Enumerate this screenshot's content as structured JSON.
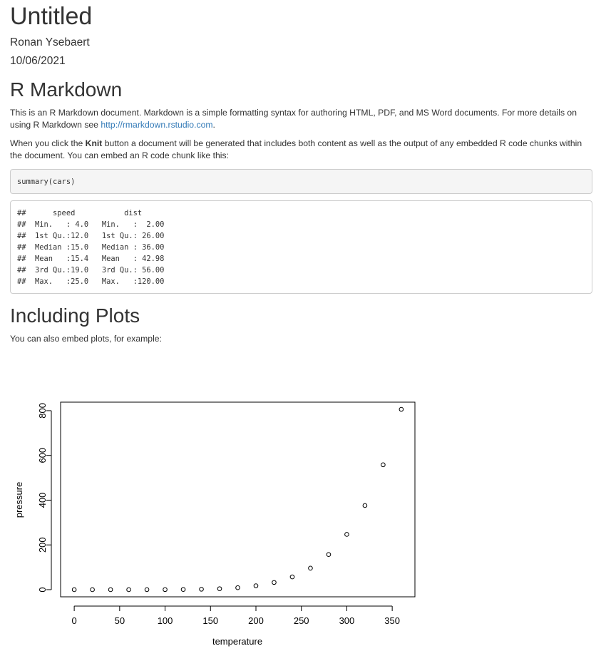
{
  "doc": {
    "title": "Untitled",
    "author": "Ronan Ysebaert",
    "date": "10/06/2021"
  },
  "section1": {
    "heading": "R Markdown",
    "p1_text": "This is an R Markdown document. Markdown is a simple formatting syntax for authoring HTML, PDF, and MS Word documents. For more details on using R Markdown see ",
    "p1_link": "http://rmarkdown.rstudio.com",
    "p1_end": ".",
    "p2_start": "When you click the ",
    "p2_bold": "Knit",
    "p2_end": " button a document will be generated that includes both content as well as the output of any embedded R code chunks within the document. You can embed an R code chunk like this:",
    "code": "summary(cars)",
    "output": "##      speed           dist       \n##  Min.   : 4.0   Min.   :  2.00  \n##  1st Qu.:12.0   1st Qu.: 26.00  \n##  Median :15.0   Median : 36.00  \n##  Mean   :15.4   Mean   : 42.98  \n##  3rd Qu.:19.0   3rd Qu.: 56.00  \n##  Max.   :25.0   Max.   :120.00  "
  },
  "section2": {
    "heading": "Including Plots",
    "p_text": "You can also embed plots, for example:"
  },
  "chart_data": {
    "type": "scatter",
    "title": "",
    "xlabel": "temperature",
    "ylabel": "pressure",
    "xlim": [
      -15,
      375
    ],
    "ylim": [
      -32,
      838
    ],
    "xticks": [
      0,
      50,
      100,
      150,
      200,
      250,
      300,
      350
    ],
    "yticks": [
      0,
      200,
      400,
      600,
      800
    ],
    "grid": false,
    "x": [
      0,
      20,
      40,
      60,
      80,
      100,
      120,
      140,
      160,
      180,
      200,
      220,
      240,
      260,
      280,
      300,
      320,
      340,
      360
    ],
    "y": [
      0.0002,
      0.0012,
      0.006,
      0.03,
      0.09,
      0.27,
      0.75,
      1.85,
      4.2,
      8.8,
      17.3,
      32.1,
      57.0,
      96.0,
      157.0,
      247.0,
      376.0,
      558.0,
      806.0
    ]
  }
}
